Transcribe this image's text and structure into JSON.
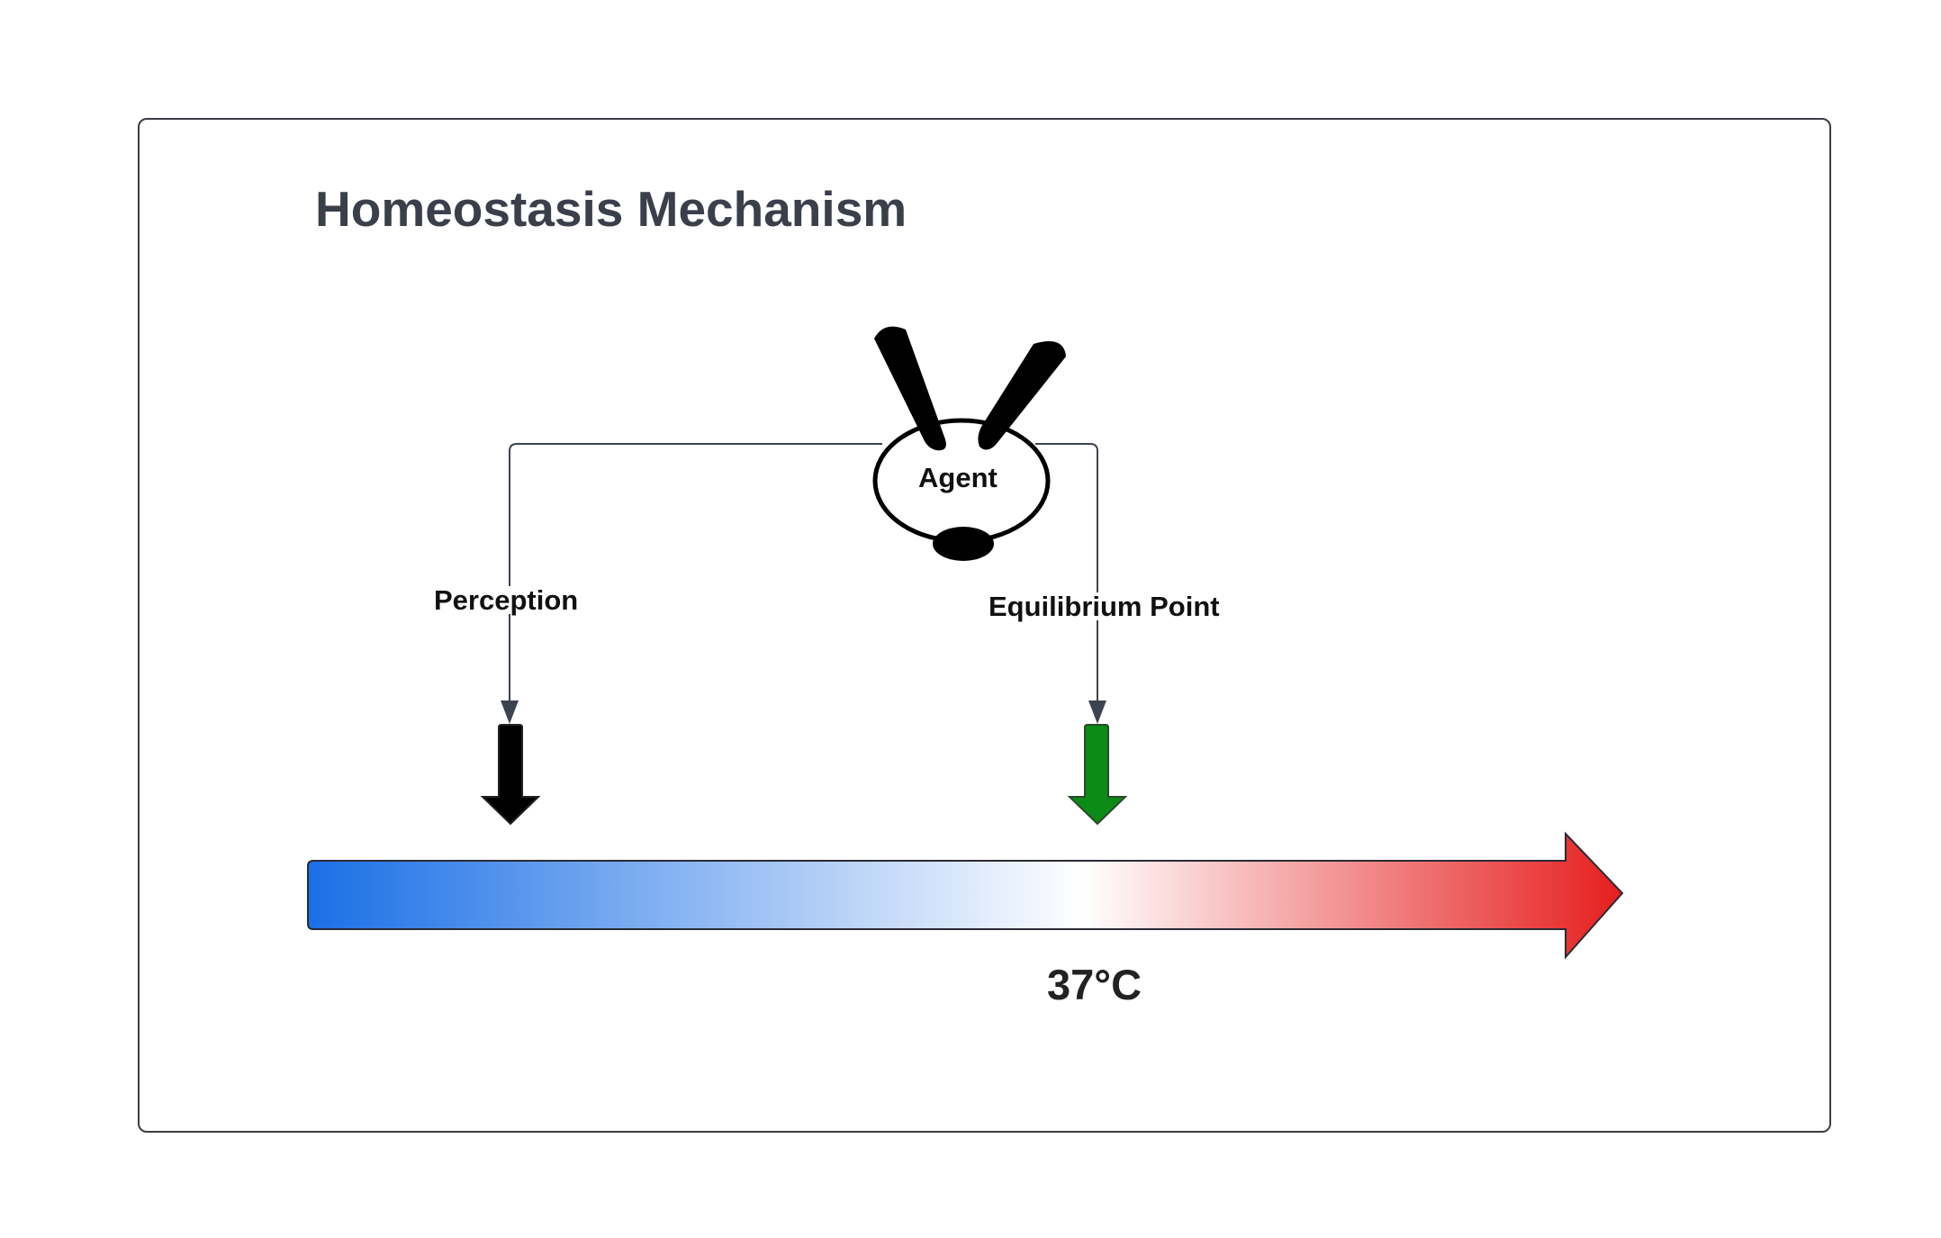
{
  "diagram": {
    "title": "Homeostasis Mechanism",
    "agent_label": "Agent",
    "perception_label": "Perception",
    "equilibrium_label": "Equilibrium Point",
    "temperature_label": "37°C",
    "colors": {
      "scale_cold": "#1a6fe6",
      "scale_neutral": "#ffffff",
      "scale_hot": "#e61e1e",
      "perception_arrow": "#000000",
      "equilibrium_arrow": "#0b8a16",
      "title": "#3a3f4a"
    },
    "icons": {
      "agent": "agent-figure-icon",
      "perception_marker": "down-arrow-icon",
      "equilibrium_marker": "down-arrow-icon",
      "scale": "temperature-scale-arrow-icon"
    }
  }
}
